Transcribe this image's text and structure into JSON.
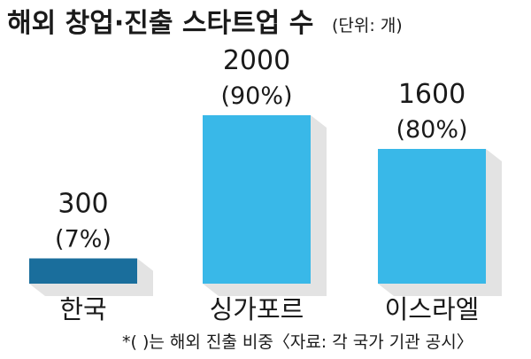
{
  "chart_data": {
    "type": "bar",
    "title": "해외 창업·진출 스타트업 수",
    "unit": "(단위: 개)",
    "categories": [
      "한국",
      "싱가포르",
      "이스라엘"
    ],
    "values": [
      300,
      2000,
      1600
    ],
    "percent_labels": [
      "(7%)",
      "(90%)",
      "(80%)"
    ],
    "value_labels": [
      "300",
      "2000",
      "1600"
    ],
    "bar_colors": [
      "#1a6e9c",
      "#39b8e8",
      "#39b8e8"
    ],
    "ylim": [
      0,
      2000
    ],
    "grid": false,
    "note": "*( )는 해외 진출 비중〈자료: 각 국가 기관 공시〉"
  },
  "colors": {
    "shadow": "#e3e3e3",
    "baseline": "#c8c8c8",
    "text": "#1a1a1a"
  }
}
